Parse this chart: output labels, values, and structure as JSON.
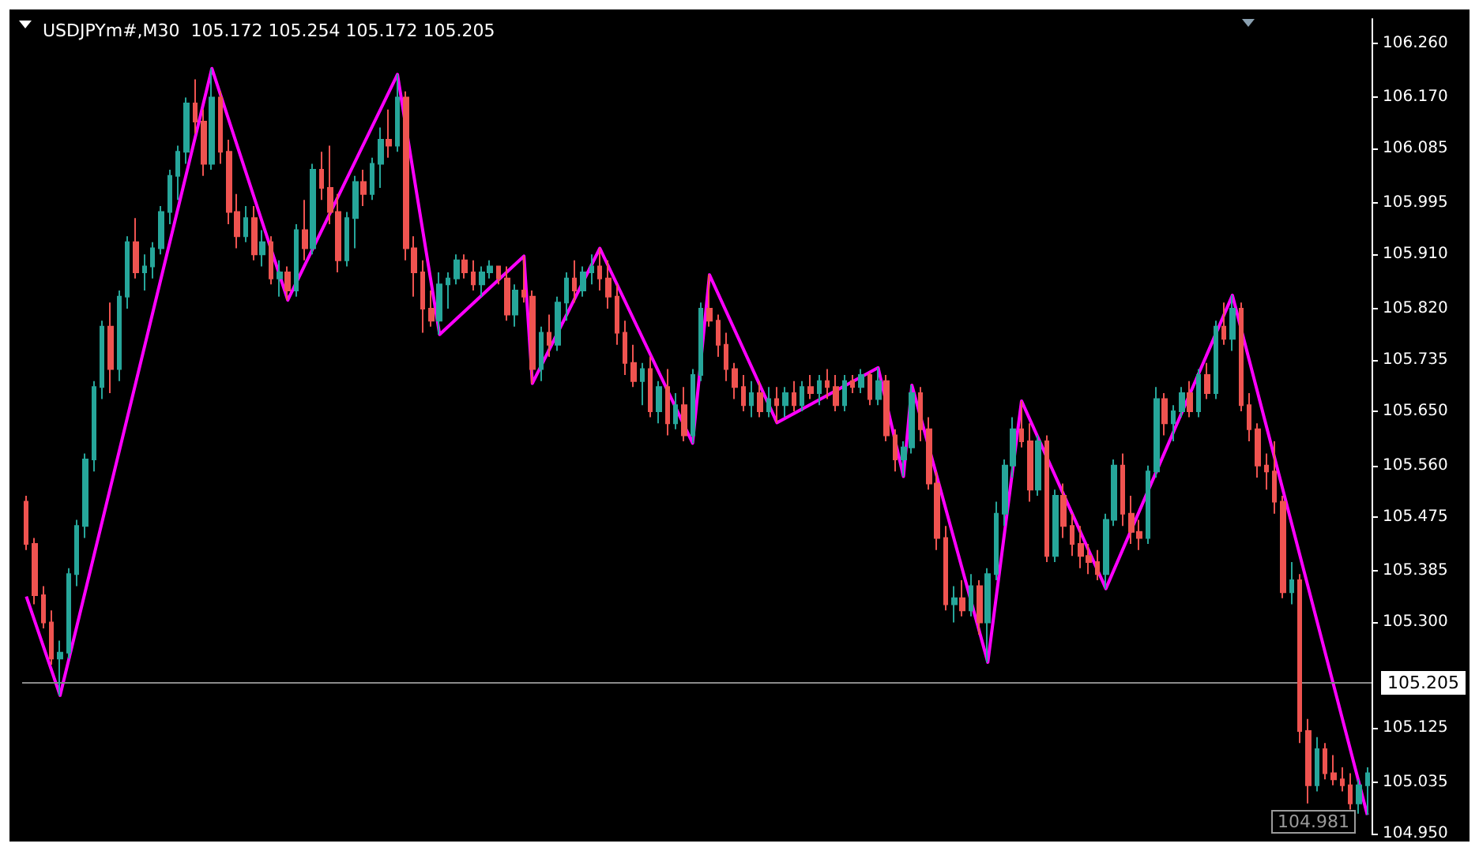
{
  "chart_data": {
    "type": "candlestick",
    "title": "USDJPYm#,M30  105.172 105.254 105.172 105.205",
    "categories": [
      null,
      null,
      null,
      null,
      null,
      null,
      null,
      null,
      null,
      null,
      null,
      null,
      null,
      null,
      null,
      null,
      null,
      null,
      null,
      null,
      null,
      null,
      null,
      null,
      null,
      null,
      null,
      null,
      null,
      null,
      null,
      null,
      null,
      null,
      null,
      null,
      null,
      null,
      null,
      null,
      null,
      null,
      null,
      null,
      null,
      null,
      null,
      null,
      null,
      null,
      null,
      null,
      null,
      null,
      null,
      null,
      null,
      null,
      null,
      null,
      null,
      null,
      null,
      null,
      null,
      null,
      null,
      null,
      null,
      null,
      null,
      null,
      null,
      null,
      null,
      null,
      null,
      null,
      null,
      null,
      null,
      null,
      null,
      null,
      null,
      null,
      null,
      null,
      null,
      null,
      null,
      null,
      null,
      null,
      null,
      null,
      null,
      null,
      null,
      null,
      null,
      null,
      null,
      null,
      null,
      null,
      null,
      null,
      null,
      null,
      null,
      null,
      null,
      null,
      null,
      null,
      null,
      null,
      null,
      null,
      null,
      null,
      null,
      null,
      null,
      null,
      null,
      null,
      null,
      null,
      null,
      null,
      null,
      null,
      null,
      null,
      null,
      null,
      null,
      null,
      null,
      null,
      null,
      null,
      null,
      null,
      null,
      null,
      null,
      null,
      null,
      null,
      null,
      null,
      null,
      null,
      null,
      null,
      null,
      null
    ],
    "colors": [
      "#ef5350",
      "#ef5350",
      "#ef5350",
      "#ef5350",
      "#26a69a",
      "#26a69a",
      "#26a69a",
      "#26a69a",
      "#26a69a",
      "#26a69a",
      "#ef5350",
      "#26a69a",
      "#26a69a",
      "#ef5350",
      "#26a69a",
      "#26a69a",
      "#26a69a",
      "#26a69a",
      "#26a69a",
      "#26a69a",
      "#ef5350",
      "#ef5350",
      "#26a69a",
      "#ef5350",
      "#ef5350",
      "#ef5350",
      "#26a69a",
      "#ef5350",
      "#26a69a",
      "#ef5350",
      "#26a69a",
      "#ef5350",
      "#26a69a",
      "#ef5350",
      "#26a69a",
      "#ef5350",
      "#ef5350",
      "#ef5350",
      "#26a69a",
      "#26a69a",
      "#ef5350",
      "#26a69a",
      "#26a69a",
      "#ef5350",
      "#26a69a",
      "#ef5350",
      "#ef5350",
      "#ef5350",
      "#ef5350",
      "#26a69a",
      "#26a69a",
      "#26a69a",
      "#ef5350",
      "#ef5350",
      "#26a69a",
      "#26a69a",
      "#ef5350",
      "#ef5350",
      "#26a69a",
      "#ef5350",
      "#ef5350",
      "#26a69a",
      "#ef5350",
      "#26a69a",
      "#26a69a",
      "#ef5350",
      "#26a69a",
      "#26a69a",
      "#ef5350",
      "#ef5350",
      "#ef5350",
      "#ef5350",
      "#ef5350",
      "#26a69a",
      "#ef5350",
      "#26a69a",
      "#ef5350",
      "#26a69a",
      "#ef5350",
      "#26a69a",
      "#26a69a",
      "#ef5350",
      "#ef5350",
      "#ef5350",
      "#ef5350",
      "#ef5350",
      "#26a69a",
      "#ef5350",
      "#26a69a",
      "#ef5350",
      "#26a69a",
      "#ef5350",
      "#26a69a",
      "#ef5350",
      "#26a69a",
      "#ef5350",
      "#ef5350",
      "#26a69a",
      "#ef5350",
      "#26a69a",
      "#ef5350",
      "#26a69a",
      "#ef5350",
      "#ef5350",
      "#26a69a",
      "#26a69a",
      "#ef5350",
      "#ef5350",
      "#ef5350",
      "#ef5350",
      "#26a69a",
      "#ef5350",
      "#26a69a",
      "#ef5350",
      "#26a69a",
      "#26a69a",
      "#26a69a",
      "#26a69a",
      "#ef5350",
      "#ef5350",
      "#26a69a",
      "#ef5350",
      "#26a69a",
      "#ef5350",
      "#ef5350",
      "#ef5350",
      "#ef5350",
      "#ef5350",
      "#26a69a",
      "#26a69a",
      "#ef5350",
      "#ef5350",
      "#ef5350",
      "#26a69a",
      "#26a69a",
      "#ef5350",
      "#26a69a",
      "#26a69a",
      "#ef5350",
      "#26a69a",
      "#ef5350",
      "#26a69a",
      "#ef5350",
      "#26a69a",
      "#ef5350",
      "#ef5350",
      "#ef5350",
      "#ef5350",
      "#ef5350",
      "#ef5350",
      "#26a69a",
      "#ef5350",
      "#ef5350",
      "#26a69a",
      "#ef5350",
      "#ef5350",
      "#ef5350",
      "#ef5350",
      "#26a69a",
      "#26a69a"
    ],
    "ohlc": [
      [
        105.5,
        105.51,
        105.42,
        105.43
      ],
      [
        105.43,
        105.44,
        105.33,
        105.345
      ],
      [
        105.345,
        105.36,
        105.29,
        105.3
      ],
      [
        105.3,
        105.32,
        105.23,
        105.24
      ],
      [
        105.24,
        105.27,
        105.179,
        105.25
      ],
      [
        105.25,
        105.39,
        105.24,
        105.38
      ],
      [
        105.38,
        105.47,
        105.36,
        105.46
      ],
      [
        105.46,
        105.58,
        105.44,
        105.57
      ],
      [
        105.57,
        105.7,
        105.55,
        105.69
      ],
      [
        105.69,
        105.8,
        105.67,
        105.79
      ],
      [
        105.79,
        105.83,
        105.68,
        105.72
      ],
      [
        105.72,
        105.85,
        105.7,
        105.84
      ],
      [
        105.84,
        105.94,
        105.82,
        105.93
      ],
      [
        105.93,
        105.97,
        105.87,
        105.88
      ],
      [
        105.88,
        105.91,
        105.85,
        105.89
      ],
      [
        105.89,
        105.93,
        105.87,
        105.92
      ],
      [
        105.92,
        105.99,
        105.91,
        105.98
      ],
      [
        105.98,
        106.05,
        105.96,
        106.04
      ],
      [
        106.04,
        106.09,
        106.0,
        106.08
      ],
      [
        106.08,
        106.17,
        106.06,
        106.16
      ],
      [
        106.16,
        106.2,
        106.11,
        106.13
      ],
      [
        106.13,
        106.15,
        106.04,
        106.06
      ],
      [
        106.06,
        106.218,
        106.05,
        106.17
      ],
      [
        106.17,
        106.18,
        106.06,
        106.08
      ],
      [
        106.08,
        106.1,
        105.96,
        105.98
      ],
      [
        105.98,
        106.01,
        105.92,
        105.94
      ],
      [
        105.94,
        105.99,
        105.93,
        105.97
      ],
      [
        105.97,
        105.99,
        105.9,
        105.91
      ],
      [
        105.91,
        105.95,
        105.89,
        105.93
      ],
      [
        105.93,
        105.94,
        105.86,
        105.87
      ],
      [
        105.87,
        105.9,
        105.84,
        105.88
      ],
      [
        105.88,
        105.89,
        105.834,
        105.85
      ],
      [
        105.85,
        105.96,
        105.84,
        105.95
      ],
      [
        105.95,
        106.0,
        105.9,
        105.92
      ],
      [
        105.92,
        106.06,
        105.91,
        106.05
      ],
      [
        106.05,
        106.08,
        106.0,
        106.02
      ],
      [
        106.02,
        106.09,
        105.96,
        105.98
      ],
      [
        105.98,
        106.01,
        105.88,
        105.9
      ],
      [
        105.9,
        105.98,
        105.89,
        105.97
      ],
      [
        105.97,
        106.04,
        105.92,
        106.03
      ],
      [
        106.03,
        106.05,
        105.99,
        106.01
      ],
      [
        106.01,
        106.07,
        106.0,
        106.06
      ],
      [
        106.06,
        106.12,
        106.02,
        106.1
      ],
      [
        106.1,
        106.15,
        106.07,
        106.09
      ],
      [
        106.09,
        106.208,
        106.08,
        106.17
      ],
      [
        106.17,
        106.18,
        105.9,
        105.92
      ],
      [
        105.92,
        105.94,
        105.84,
        105.88
      ],
      [
        105.88,
        105.9,
        105.78,
        105.82
      ],
      [
        105.82,
        105.85,
        105.79,
        105.8
      ],
      [
        105.8,
        105.88,
        105.777,
        105.86
      ],
      [
        105.86,
        105.88,
        105.82,
        105.87
      ],
      [
        105.87,
        105.91,
        105.86,
        105.9
      ],
      [
        105.9,
        105.91,
        105.87,
        105.88
      ],
      [
        105.88,
        105.9,
        105.85,
        105.86
      ],
      [
        105.86,
        105.89,
        105.84,
        105.88
      ],
      [
        105.88,
        105.9,
        105.87,
        105.89
      ],
      [
        105.89,
        105.89,
        105.86,
        105.87
      ],
      [
        105.87,
        105.89,
        105.8,
        105.81
      ],
      [
        105.81,
        105.86,
        105.79,
        105.85
      ],
      [
        105.85,
        105.907,
        105.83,
        105.84
      ],
      [
        105.84,
        105.85,
        105.696,
        105.72
      ],
      [
        105.72,
        105.79,
        105.7,
        105.78
      ],
      [
        105.78,
        105.81,
        105.74,
        105.76
      ],
      [
        105.76,
        105.84,
        105.75,
        105.83
      ],
      [
        105.83,
        105.88,
        105.8,
        105.87
      ],
      [
        105.87,
        105.9,
        105.83,
        105.85
      ],
      [
        105.85,
        105.89,
        105.84,
        105.88
      ],
      [
        105.88,
        105.91,
        105.86,
        105.89
      ],
      [
        105.89,
        105.92,
        105.85,
        105.87
      ],
      [
        105.87,
        105.9,
        105.82,
        105.84
      ],
      [
        105.84,
        105.86,
        105.76,
        105.78
      ],
      [
        105.78,
        105.8,
        105.71,
        105.73
      ],
      [
        105.73,
        105.76,
        105.69,
        105.7
      ],
      [
        105.7,
        105.73,
        105.66,
        105.72
      ],
      [
        105.72,
        105.74,
        105.64,
        105.65
      ],
      [
        105.65,
        105.7,
        105.63,
        105.69
      ],
      [
        105.69,
        105.72,
        105.61,
        105.63
      ],
      [
        105.63,
        105.68,
        105.62,
        105.66
      ],
      [
        105.66,
        105.69,
        105.6,
        105.61
      ],
      [
        105.61,
        105.72,
        105.597,
        105.71
      ],
      [
        105.71,
        105.83,
        105.7,
        105.82
      ],
      [
        105.82,
        105.876,
        105.79,
        105.8
      ],
      [
        105.8,
        105.81,
        105.74,
        105.76
      ],
      [
        105.76,
        105.78,
        105.7,
        105.72
      ],
      [
        105.72,
        105.73,
        105.67,
        105.69
      ],
      [
        105.69,
        105.71,
        105.65,
        105.66
      ],
      [
        105.66,
        105.7,
        105.64,
        105.68
      ],
      [
        105.68,
        105.7,
        105.64,
        105.65
      ],
      [
        105.65,
        105.69,
        105.64,
        105.67
      ],
      [
        105.67,
        105.69,
        105.631,
        105.66
      ],
      [
        105.66,
        105.69,
        105.64,
        105.68
      ],
      [
        105.68,
        105.7,
        105.65,
        105.66
      ],
      [
        105.66,
        105.7,
        105.65,
        105.69
      ],
      [
        105.69,
        105.71,
        105.67,
        105.68
      ],
      [
        105.68,
        105.71,
        105.66,
        105.7
      ],
      [
        105.7,
        105.72,
        105.67,
        105.69
      ],
      [
        105.69,
        105.71,
        105.65,
        105.66
      ],
      [
        105.66,
        105.71,
        105.65,
        105.7
      ],
      [
        105.7,
        105.71,
        105.68,
        105.69
      ],
      [
        105.69,
        105.72,
        105.68,
        105.71
      ],
      [
        105.71,
        105.715,
        105.66,
        105.67
      ],
      [
        105.67,
        105.722,
        105.66,
        105.7
      ],
      [
        105.7,
        105.71,
        105.6,
        105.61
      ],
      [
        105.61,
        105.62,
        105.55,
        105.57
      ],
      [
        105.57,
        105.6,
        105.542,
        105.59
      ],
      [
        105.59,
        105.693,
        105.58,
        105.68
      ],
      [
        105.68,
        105.69,
        105.6,
        105.62
      ],
      [
        105.62,
        105.64,
        105.52,
        105.53
      ],
      [
        105.53,
        105.55,
        105.42,
        105.44
      ],
      [
        105.44,
        105.46,
        105.32,
        105.33
      ],
      [
        105.33,
        105.36,
        105.3,
        105.34
      ],
      [
        105.34,
        105.37,
        105.31,
        105.32
      ],
      [
        105.32,
        105.38,
        105.31,
        105.36
      ],
      [
        105.36,
        105.37,
        105.28,
        105.3
      ],
      [
        105.3,
        105.39,
        105.234,
        105.38
      ],
      [
        105.38,
        105.5,
        105.37,
        105.48
      ],
      [
        105.48,
        105.57,
        105.46,
        105.56
      ],
      [
        105.56,
        105.64,
        105.54,
        105.62
      ],
      [
        105.62,
        105.667,
        105.59,
        105.6
      ],
      [
        105.6,
        105.63,
        105.5,
        105.52
      ],
      [
        105.52,
        105.61,
        105.51,
        105.6
      ],
      [
        105.6,
        105.61,
        105.4,
        105.41
      ],
      [
        105.41,
        105.52,
        105.4,
        105.51
      ],
      [
        105.51,
        105.53,
        105.44,
        105.46
      ],
      [
        105.46,
        105.48,
        105.41,
        105.43
      ],
      [
        105.43,
        105.46,
        105.39,
        105.41
      ],
      [
        105.41,
        105.43,
        105.38,
        105.4
      ],
      [
        105.4,
        105.42,
        105.37,
        105.38
      ],
      [
        105.38,
        105.48,
        105.356,
        105.47
      ],
      [
        105.47,
        105.57,
        105.46,
        105.56
      ],
      [
        105.56,
        105.58,
        105.46,
        105.48
      ],
      [
        105.48,
        105.51,
        105.43,
        105.45
      ],
      [
        105.45,
        105.47,
        105.42,
        105.44
      ],
      [
        105.44,
        105.56,
        105.43,
        105.55
      ],
      [
        105.55,
        105.69,
        105.54,
        105.67
      ],
      [
        105.67,
        105.68,
        105.61,
        105.63
      ],
      [
        105.63,
        105.66,
        105.6,
        105.65
      ],
      [
        105.65,
        105.69,
        105.64,
        105.68
      ],
      [
        105.68,
        105.7,
        105.64,
        105.65
      ],
      [
        105.65,
        105.72,
        105.64,
        105.71
      ],
      [
        105.71,
        105.73,
        105.67,
        105.68
      ],
      [
        105.68,
        105.8,
        105.67,
        105.79
      ],
      [
        105.79,
        105.83,
        105.76,
        105.77
      ],
      [
        105.77,
        105.842,
        105.75,
        105.82
      ],
      [
        105.82,
        105.83,
        105.65,
        105.66
      ],
      [
        105.66,
        105.68,
        105.6,
        105.62
      ],
      [
        105.62,
        105.63,
        105.54,
        105.56
      ],
      [
        105.56,
        105.58,
        105.52,
        105.55
      ],
      [
        105.55,
        105.6,
        105.48,
        105.5
      ],
      [
        105.5,
        105.51,
        105.34,
        105.35
      ],
      [
        105.35,
        105.4,
        105.33,
        105.37
      ],
      [
        105.37,
        105.38,
        105.1,
        105.12
      ],
      [
        105.12,
        105.14,
        105.0,
        105.03
      ],
      [
        105.03,
        105.11,
        105.02,
        105.09
      ],
      [
        105.09,
        105.1,
        105.04,
        105.05
      ],
      [
        105.05,
        105.08,
        105.03,
        105.04
      ],
      [
        105.04,
        105.06,
        105.02,
        105.03
      ],
      [
        105.03,
        105.05,
        104.99,
        105.0
      ],
      [
        105.0,
        105.04,
        104.983,
        105.03
      ],
      [
        105.03,
        105.06,
        104.981,
        105.05
      ]
    ],
    "series": [
      {
        "type": "line",
        "color": "#ff00ff",
        "values": [
          105.343,
          null,
          null,
          null,
          105.179,
          null,
          null,
          null,
          null,
          null,
          null,
          null,
          null,
          null,
          null,
          null,
          null,
          null,
          null,
          null,
          null,
          null,
          106.218,
          null,
          null,
          null,
          null,
          null,
          null,
          null,
          null,
          105.834,
          null,
          null,
          null,
          null,
          null,
          null,
          null,
          null,
          null,
          null,
          null,
          null,
          106.208,
          null,
          null,
          null,
          null,
          105.777,
          null,
          null,
          null,
          null,
          null,
          null,
          null,
          null,
          null,
          105.907,
          105.696,
          null,
          null,
          null,
          null,
          null,
          null,
          null,
          105.92,
          null,
          null,
          null,
          null,
          null,
          null,
          null,
          null,
          null,
          null,
          105.597,
          null,
          105.876,
          null,
          null,
          null,
          null,
          null,
          null,
          null,
          105.631,
          null,
          null,
          null,
          null,
          null,
          null,
          null,
          null,
          null,
          null,
          null,
          105.722,
          null,
          null,
          105.542,
          105.693,
          null,
          null,
          null,
          null,
          null,
          null,
          null,
          null,
          105.234,
          null,
          null,
          null,
          105.667,
          null,
          null,
          null,
          null,
          null,
          null,
          null,
          null,
          null,
          105.356,
          null,
          null,
          null,
          null,
          null,
          null,
          null,
          null,
          null,
          null,
          null,
          null,
          null,
          null,
          105.842,
          null,
          null,
          null,
          null,
          null,
          null,
          null,
          null,
          null,
          null,
          null,
          null,
          null,
          null,
          null,
          104.981
        ]
      }
    ],
    "ylim": [
      104.95,
      106.3
    ],
    "yticks": [
      {
        "value": 104.95,
        "label": "104.950"
      },
      {
        "value": 105.035,
        "label": "105.035"
      },
      {
        "value": 105.125,
        "label": "105.125"
      },
      {
        "value": 105.3,
        "label": "105.300"
      },
      {
        "value": 105.385,
        "label": "105.385"
      },
      {
        "value": 105.475,
        "label": "105.475"
      },
      {
        "value": 105.56,
        "label": "105.560"
      },
      {
        "value": 105.65,
        "label": "105.650"
      },
      {
        "value": 105.735,
        "label": "105.735"
      },
      {
        "value": 105.82,
        "label": "105.820"
      },
      {
        "value": 105.91,
        "label": "105.910"
      },
      {
        "value": 105.995,
        "label": "105.995"
      },
      {
        "value": 106.085,
        "label": "106.085"
      },
      {
        "value": 106.17,
        "label": "106.170"
      },
      {
        "value": 106.26,
        "label": "106.260"
      }
    ],
    "ref_lines": [
      {
        "axis": "y",
        "value": 105.205,
        "label": "105.205",
        "color": "#8a8a8a"
      }
    ],
    "annotations": [
      "104.981"
    ],
    "tick_labels": "y"
  }
}
